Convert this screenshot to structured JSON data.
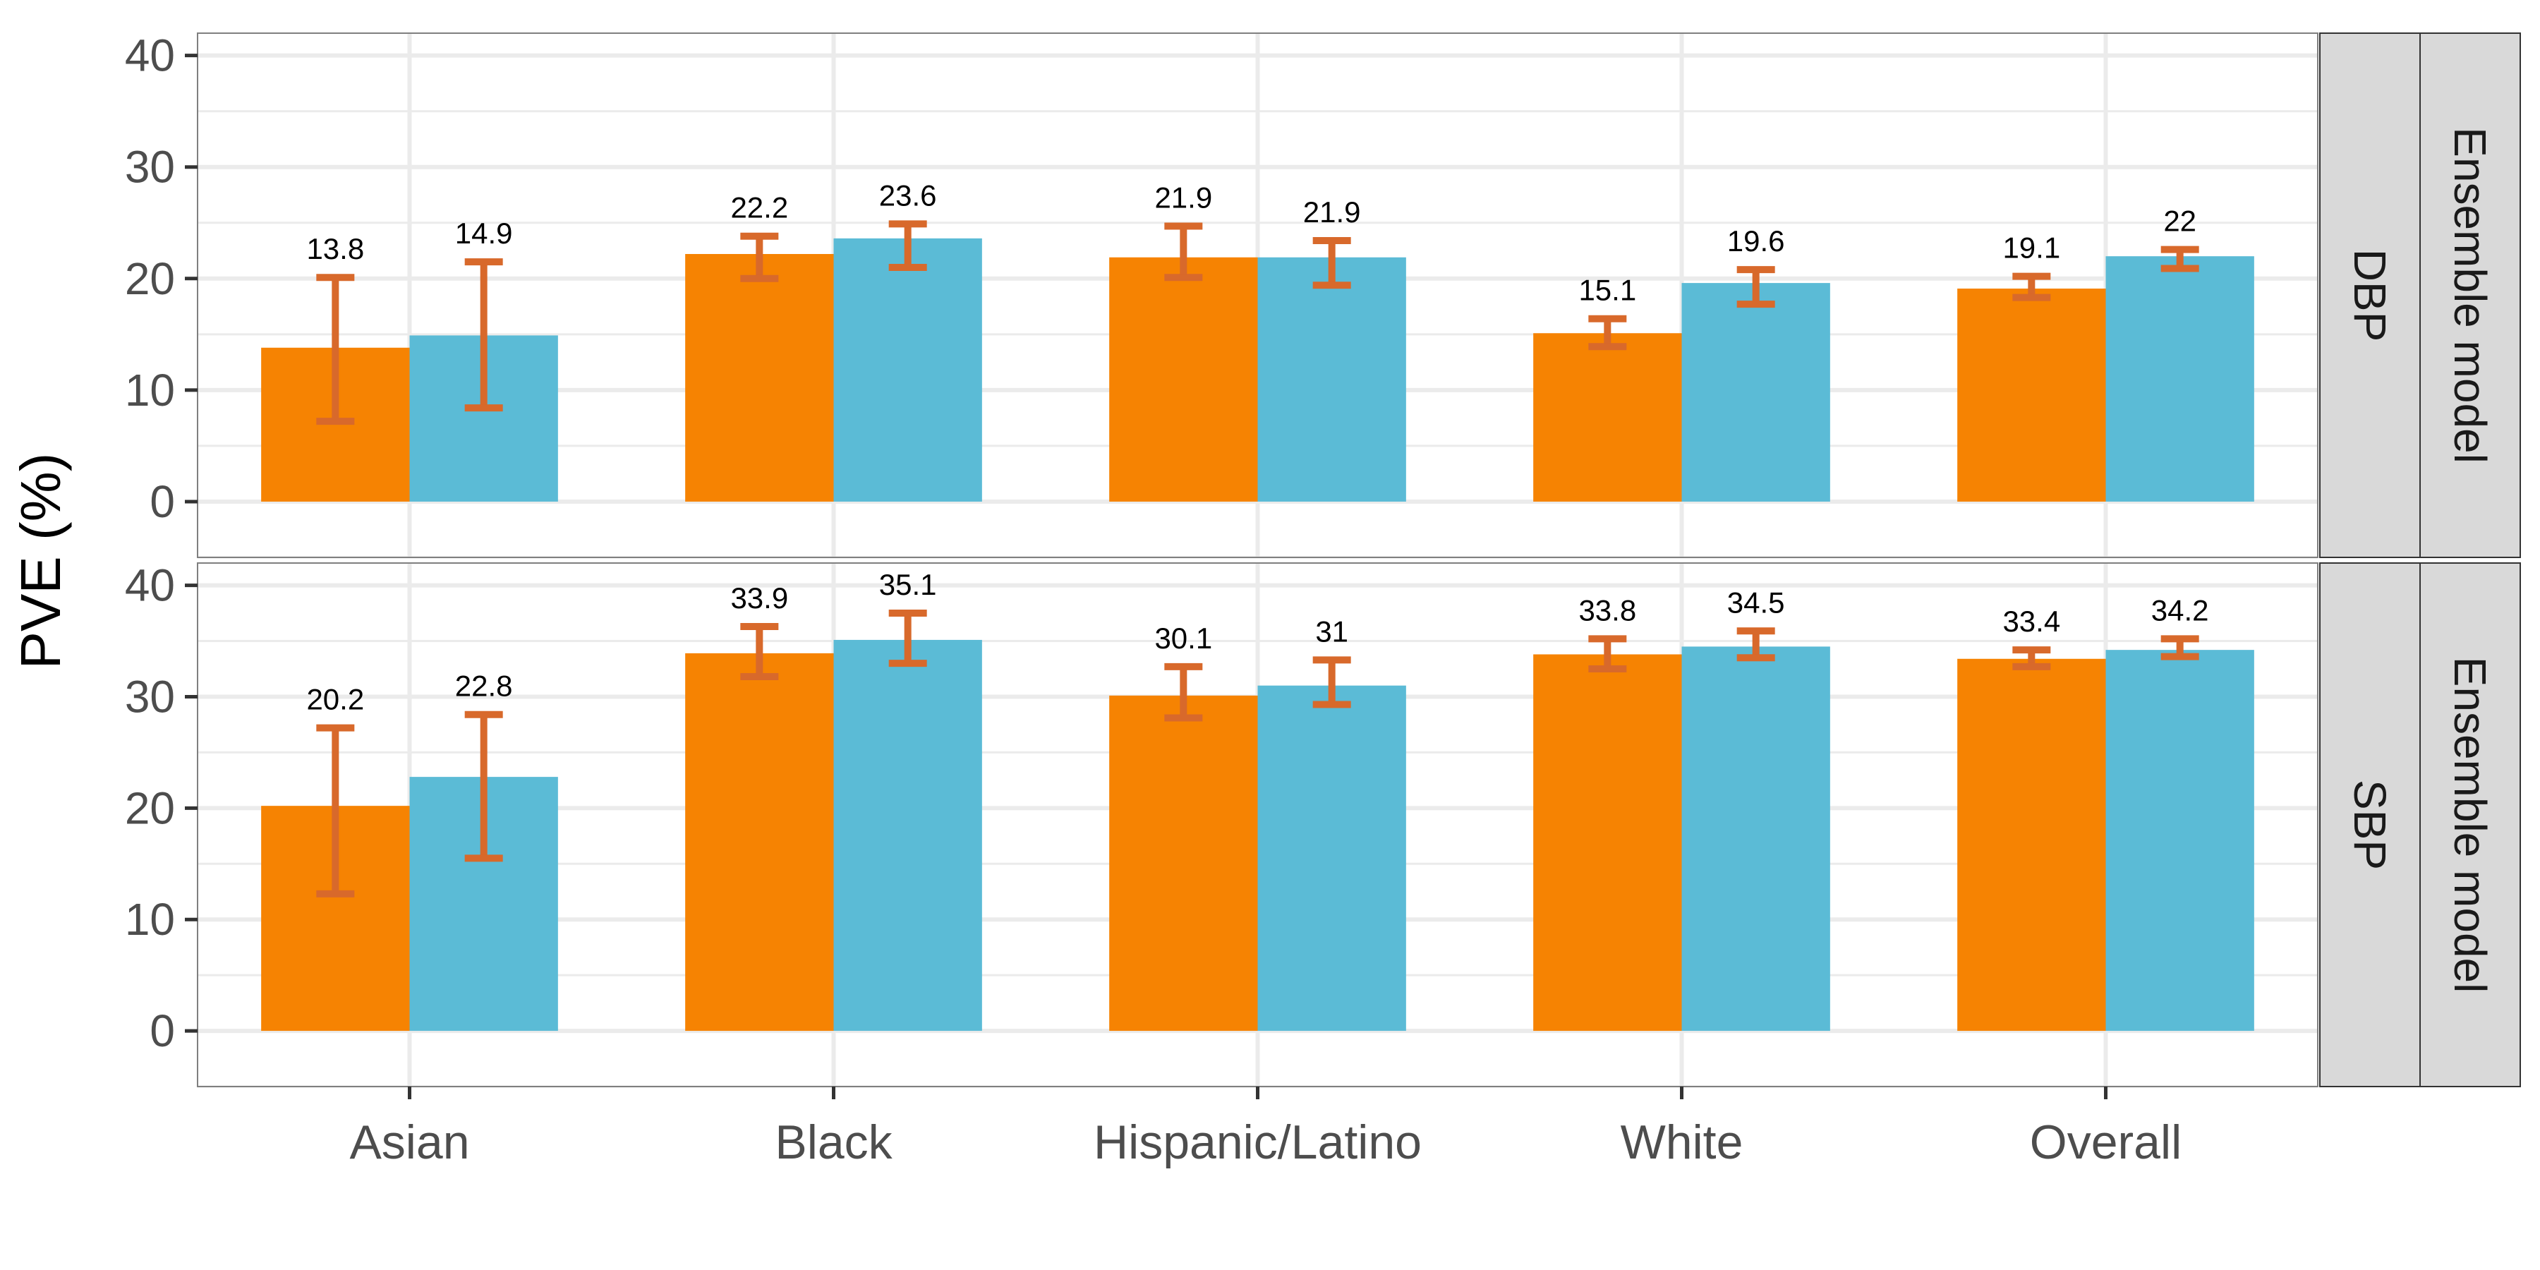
{
  "chart_data": {
    "type": "bar",
    "ylabel": "PVE (%)",
    "ylim": [
      -5,
      42
    ],
    "yticks": [
      0,
      10,
      20,
      30,
      40
    ],
    "grid": true,
    "categories": [
      "Asian",
      "Black",
      "Hispanic/Latino",
      "White",
      "Overall"
    ],
    "strip_right_outer": "Ensemble model",
    "colors": {
      "orange": "#F68302",
      "blue": "#5BBBD6",
      "errorbar": "#D8692B",
      "strip_bg": "#D9D9D9",
      "grid": "#EBEBEB",
      "text": "#4D4D4D"
    },
    "panels": [
      {
        "strip": "DBP",
        "series": [
          {
            "color": "#F68302",
            "values": [
              13.8,
              22.2,
              21.9,
              15.1,
              19.1
            ],
            "labels": [
              "13.8",
              "22.2",
              "21.9",
              "15.1",
              "19.1"
            ],
            "ci_low": [
              7.2,
              20.0,
              20.1,
              13.9,
              18.3
            ],
            "ci_high": [
              20.1,
              23.8,
              24.7,
              16.4,
              20.2
            ]
          },
          {
            "color": "#5BBBD6",
            "values": [
              14.9,
              23.6,
              21.9,
              19.6,
              22.0
            ],
            "labels": [
              "14.9",
              "23.6",
              "21.9",
              "19.6",
              "22"
            ],
            "ci_low": [
              8.4,
              21.0,
              19.4,
              17.7,
              20.9
            ],
            "ci_high": [
              21.5,
              24.9,
              23.4,
              20.8,
              22.6
            ]
          }
        ]
      },
      {
        "strip": "SBP",
        "series": [
          {
            "color": "#F68302",
            "values": [
              20.2,
              33.9,
              30.1,
              33.8,
              33.4
            ],
            "labels": [
              "20.2",
              "33.9",
              "30.1",
              "33.8",
              "33.4"
            ],
            "ci_low": [
              12.3,
              31.8,
              28.1,
              32.5,
              32.7
            ],
            "ci_high": [
              27.2,
              36.3,
              32.7,
              35.2,
              34.2
            ]
          },
          {
            "color": "#5BBBD6",
            "values": [
              22.8,
              35.1,
              31.0,
              34.5,
              34.2
            ],
            "labels": [
              "22.8",
              "35.1",
              "31",
              "34.5",
              "34.2"
            ],
            "ci_low": [
              15.5,
              33.0,
              29.3,
              33.5,
              33.6
            ],
            "ci_high": [
              28.4,
              37.5,
              33.3,
              35.9,
              35.2
            ]
          }
        ]
      }
    ]
  }
}
